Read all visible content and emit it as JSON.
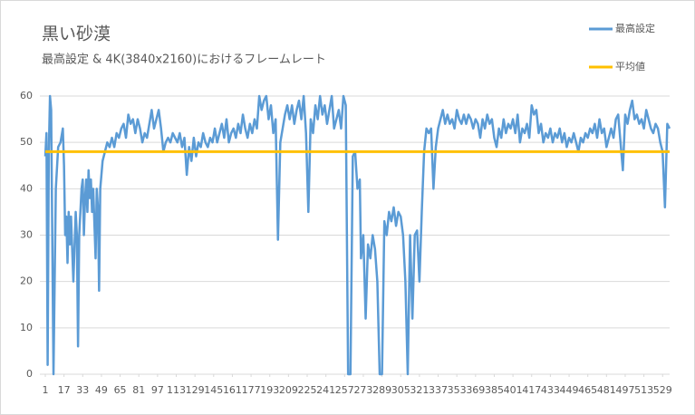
{
  "chart_data": {
    "type": "line",
    "title": "黒い砂漠",
    "subtitle": "最高設定 & 4K(3840x2160)におけるフレームレート",
    "xlim": [
      1,
      535
    ],
    "xticks": [
      1,
      17,
      33,
      49,
      65,
      81,
      97,
      113,
      129,
      145,
      161,
      177,
      193,
      209,
      225,
      241,
      257,
      273,
      289,
      305,
      321,
      337,
      353,
      369,
      385,
      401,
      417,
      433,
      449,
      465,
      481,
      497,
      513,
      529
    ],
    "ylim": [
      0,
      60
    ],
    "yticks": [
      0,
      10,
      20,
      30,
      40,
      50,
      60
    ],
    "grid": true,
    "series": [
      {
        "name": "最高設定",
        "color": "#5b9bd5",
        "x": [
          1,
          2,
          3,
          4,
          5,
          6,
          8,
          10,
          12,
          14,
          16,
          17,
          18,
          19,
          20,
          21,
          22,
          23,
          25,
          27,
          28,
          29,
          30,
          31,
          32,
          33,
          34,
          35,
          36,
          37,
          38,
          39,
          40,
          41,
          42,
          44,
          45,
          46,
          47,
          48,
          50,
          52,
          54,
          56,
          58,
          60,
          62,
          64,
          66,
          68,
          70,
          72,
          74,
          76,
          78,
          80,
          82,
          84,
          86,
          88,
          90,
          92,
          94,
          96,
          98,
          100,
          102,
          104,
          106,
          108,
          110,
          112,
          114,
          116,
          118,
          120,
          122,
          124,
          126,
          128,
          130,
          132,
          134,
          136,
          138,
          140,
          142,
          144,
          146,
          148,
          150,
          152,
          154,
          156,
          158,
          160,
          162,
          164,
          166,
          168,
          170,
          172,
          174,
          176,
          178,
          180,
          182,
          184,
          186,
          188,
          190,
          192,
          194,
          196,
          198,
          200,
          202,
          204,
          206,
          208,
          210,
          212,
          214,
          216,
          218,
          220,
          222,
          224,
          226,
          228,
          230,
          232,
          234,
          236,
          238,
          240,
          242,
          244,
          246,
          248,
          250,
          252,
          254,
          256,
          258,
          260,
          262,
          264,
          266,
          268,
          270,
          271,
          273,
          275,
          277,
          279,
          281,
          283,
          285,
          287,
          289,
          291,
          293,
          295,
          297,
          299,
          301,
          303,
          305,
          307,
          309,
          311,
          313,
          315,
          317,
          319,
          321,
          323,
          325,
          327,
          329,
          331,
          333,
          335,
          337,
          339,
          341,
          343,
          345,
          347,
          349,
          351,
          353,
          355,
          357,
          359,
          361,
          363,
          365,
          367,
          369,
          371,
          373,
          375,
          377,
          379,
          381,
          383,
          385,
          387,
          389,
          391,
          393,
          395,
          397,
          399,
          401,
          403,
          405,
          407,
          409,
          411,
          413,
          415,
          417,
          419,
          421,
          423,
          425,
          427,
          429,
          431,
          433,
          435,
          437,
          439,
          441,
          443,
          445,
          447,
          449,
          451,
          453,
          455,
          457,
          459,
          461,
          463,
          465,
          467,
          469,
          471,
          473,
          475,
          477,
          479,
          481,
          483,
          485,
          487,
          489,
          491,
          493,
          495,
          497,
          499,
          501,
          503,
          505,
          507,
          509,
          511,
          513,
          515,
          517,
          519,
          521,
          523,
          525,
          527,
          529,
          531,
          533,
          535
        ],
        "values": [
          47,
          52,
          2,
          48,
          60,
          57,
          0,
          40,
          49,
          50,
          53,
          45,
          30,
          34,
          24,
          35,
          28,
          34,
          20,
          35,
          30,
          6,
          30,
          35,
          40,
          42,
          30,
          38,
          42,
          35,
          44,
          38,
          42,
          35,
          40,
          25,
          40,
          36,
          18,
          40,
          46,
          48,
          50,
          49,
          51,
          49,
          52,
          51,
          53,
          54,
          51,
          56,
          54,
          55,
          52,
          55,
          53,
          50,
          52,
          51,
          54,
          57,
          53,
          55,
          57,
          53,
          48,
          50,
          51,
          50,
          52,
          51,
          50,
          52,
          49,
          51,
          43,
          49,
          46,
          51,
          47,
          50,
          49,
          52,
          50,
          49,
          51,
          50,
          53,
          50,
          52,
          54,
          51,
          55,
          50,
          52,
          53,
          51,
          54,
          52,
          56,
          53,
          51,
          54,
          52,
          55,
          53,
          60,
          57,
          59,
          60,
          55,
          58,
          52,
          55,
          29,
          50,
          53,
          56,
          58,
          55,
          58,
          54,
          57,
          59,
          55,
          60,
          52,
          35,
          55,
          52,
          58,
          55,
          60,
          56,
          58,
          54,
          57,
          60,
          53,
          55,
          57,
          53,
          60,
          58,
          0,
          0,
          47,
          48,
          40,
          42,
          25,
          30,
          12,
          28,
          25,
          30,
          27,
          20,
          0,
          0,
          33,
          30,
          35,
          33,
          36,
          32,
          35,
          34,
          30,
          20,
          0,
          30,
          12,
          30,
          31,
          20,
          35,
          48,
          53,
          52,
          53,
          40,
          49,
          53,
          55,
          57,
          54,
          56,
          54,
          55,
          53,
          57,
          55,
          54,
          56,
          54,
          56,
          55,
          53,
          55,
          54,
          51,
          55,
          53,
          56,
          54,
          55,
          51,
          49,
          53,
          51,
          55,
          52,
          54,
          53,
          55,
          52,
          56,
          50,
          53,
          52,
          54,
          51,
          58,
          56,
          57,
          52,
          54,
          50,
          52,
          51,
          53,
          50,
          52,
          51,
          53,
          50,
          52,
          49,
          51,
          50,
          52,
          50,
          48,
          51,
          50,
          52,
          51,
          53,
          52,
          54,
          51,
          55,
          52,
          53,
          49,
          51,
          53,
          51,
          55,
          56,
          50,
          44,
          56,
          54,
          57,
          59,
          55,
          56,
          54,
          55,
          53,
          57,
          55,
          53,
          52,
          54,
          53,
          50,
          48,
          36,
          54,
          53
        ]
      },
      {
        "name": "平均値",
        "color": "#ffc000",
        "x": [
          1,
          535
        ],
        "values": [
          48,
          48
        ]
      }
    ]
  }
}
